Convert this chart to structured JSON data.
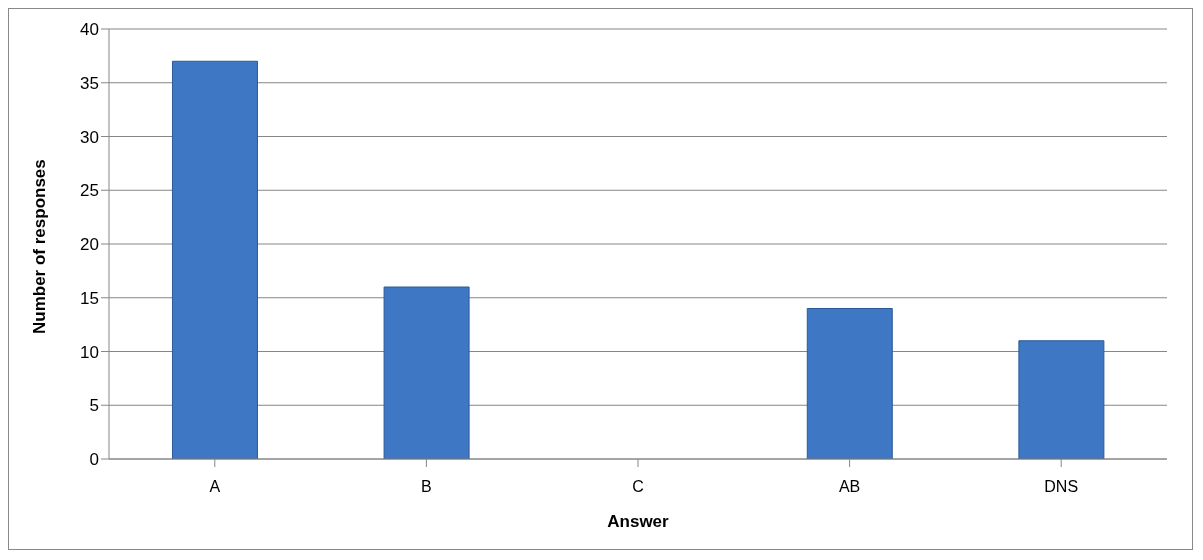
{
  "chart_data": {
    "type": "bar",
    "xlabel": "Answer",
    "ylabel": "Number of responses",
    "categories": [
      "A",
      "B",
      "C",
      "AB",
      "DNS"
    ],
    "values": [
      37,
      16,
      0,
      14,
      11
    ],
    "color": "#3e77c4",
    "ylim": [
      0,
      40
    ],
    "yticks": [
      0,
      5,
      10,
      15,
      20,
      25,
      30,
      35,
      40
    ],
    "grid": "y"
  }
}
